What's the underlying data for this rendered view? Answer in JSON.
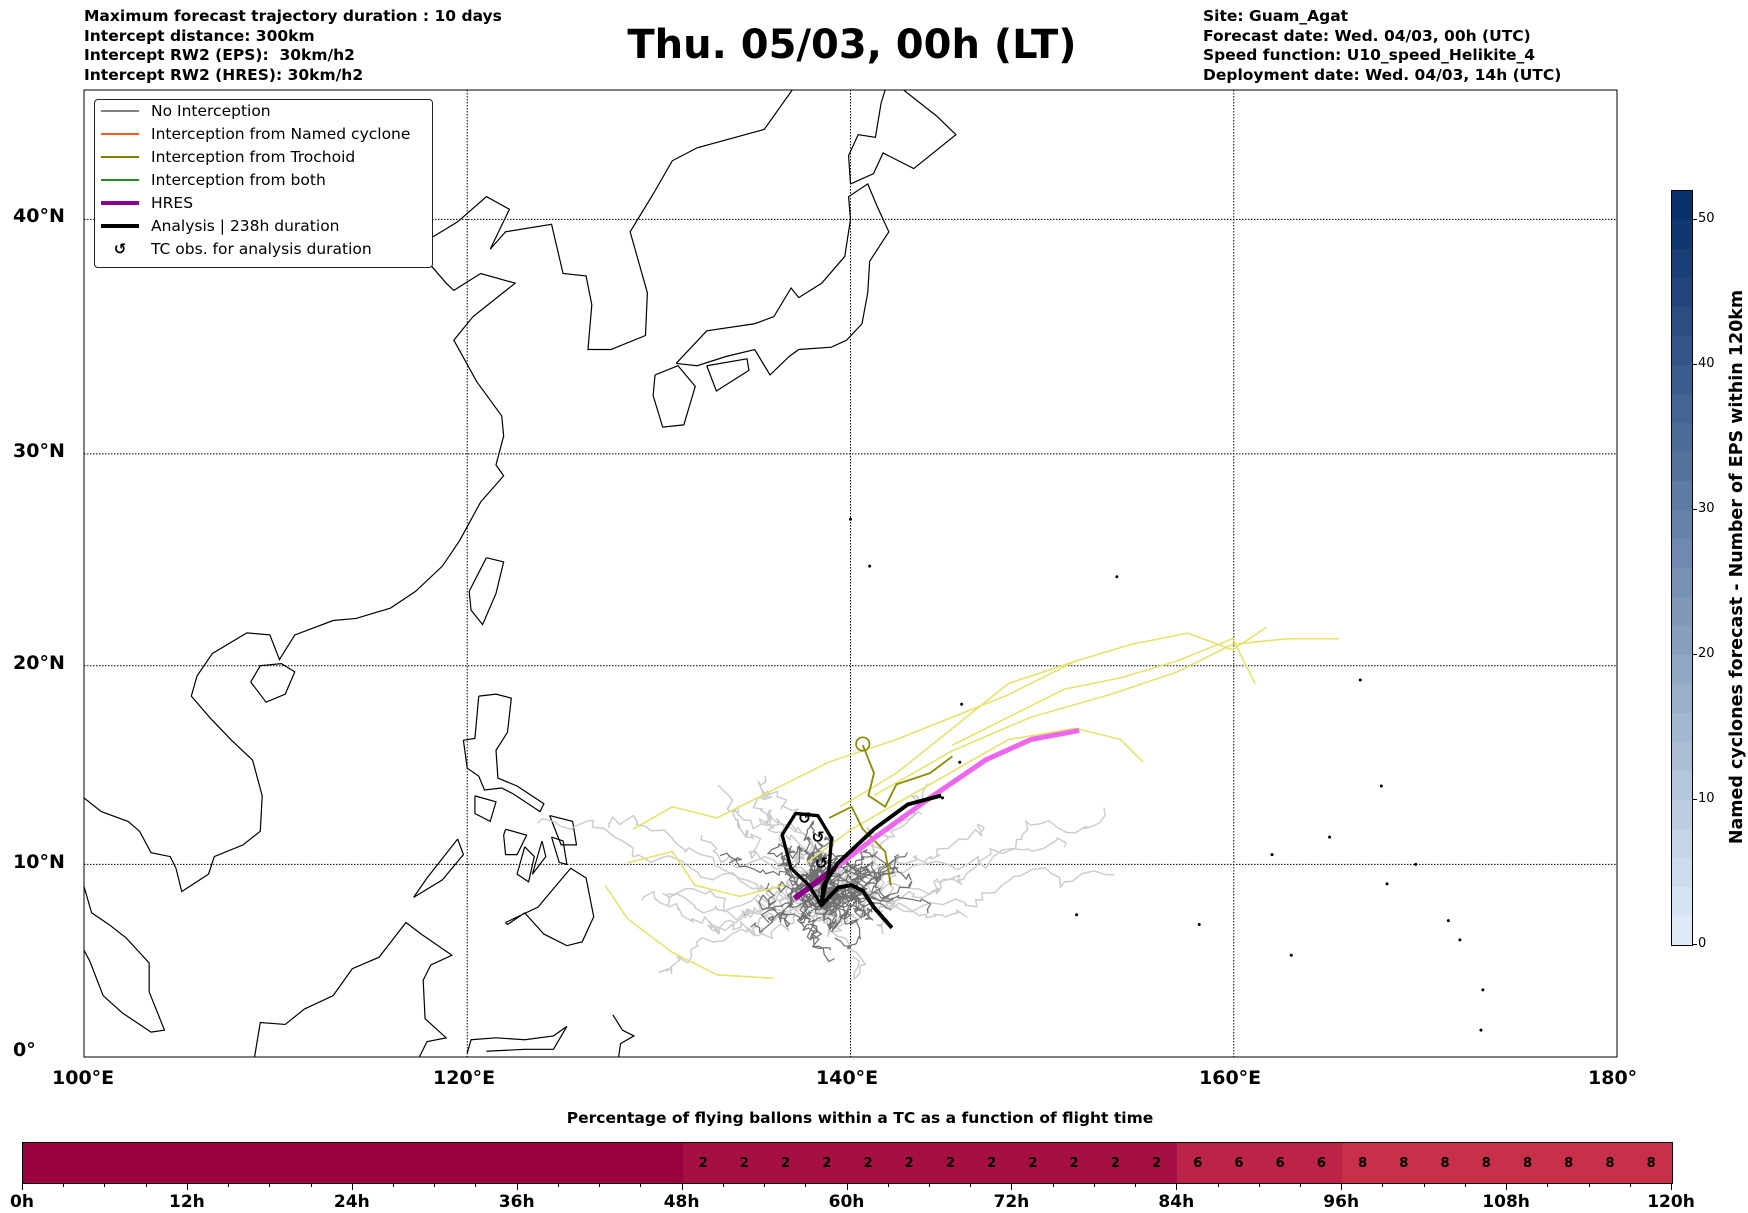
{
  "header_left": [
    "Maximum forecast trajectory duration : 10 days",
    "Intercept distance: 300km",
    "Intercept RW2 (EPS):  30km/h2",
    "Intercept RW2 (HRES): 30km/h2"
  ],
  "title": "Thu. 05/03, 00h (LT)",
  "header_right": [
    "Site: Guam_Agat",
    "Forecast date: Wed. 04/03, 00h (UTC)",
    "Speed function: U10_speed_Helikite_4",
    "Deployment date: Wed. 04/03, 14h (UTC)"
  ],
  "legend": [
    {
      "label": "No Interception",
      "color": "#808080",
      "style": "thin"
    },
    {
      "label": "Interception from Named cyclone",
      "color": "#ff5a1e",
      "style": "thin"
    },
    {
      "label": "Interception from Trochoid",
      "color": "#808000",
      "style": "thin"
    },
    {
      "label": "Interception from both",
      "color": "#228b22",
      "style": "thin"
    },
    {
      "label": "HRES",
      "color": "#8b008b",
      "style": "thick"
    },
    {
      "label": "Analysis | 238h duration",
      "color": "#000000",
      "style": "thick"
    },
    {
      "label": "TC obs. for analysis duration",
      "icon": "cyclone-symbol-icon"
    }
  ],
  "lat_labels": [
    "0°",
    "10°N",
    "20°N",
    "30°N",
    "40°N"
  ],
  "lon_labels": [
    "100°E",
    "120°E",
    "140°E",
    "160°E",
    "180°"
  ],
  "colorbar": {
    "label": "Named cyclones forecast - Number of EPS within 120km",
    "min": 0,
    "max": 52,
    "ticks": [
      "0",
      "10",
      "20",
      "30",
      "40",
      "50"
    ],
    "color_low": "#deebf7",
    "color_high": "#08306b"
  },
  "time_bar": {
    "title": "Percentage of flying ballons within a TC as a function of flight time",
    "step_hours": 3,
    "values": [
      0,
      0,
      0,
      0,
      0,
      0,
      0,
      0,
      0,
      0,
      0,
      0,
      0,
      0,
      0,
      0,
      2,
      2,
      2,
      2,
      2,
      2,
      2,
      2,
      2,
      2,
      2,
      2,
      6,
      6,
      6,
      6,
      8,
      8,
      8,
      8,
      8,
      8,
      8,
      8
    ],
    "tick_labels": [
      "0h",
      "12h",
      "24h",
      "36h",
      "48h",
      "60h",
      "72h",
      "84h",
      "96h",
      "108h",
      "120h"
    ]
  }
}
